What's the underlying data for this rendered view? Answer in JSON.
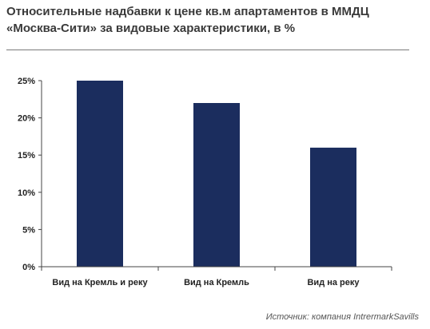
{
  "header": {
    "title_line1": "Относительные надбавки к цене кв.м апартаментов в ММДЦ",
    "title_line2": "«Москва-Сити» за видовые характеристики, в %"
  },
  "footer": {
    "source": "Источник: компания IntrermarkSavills"
  },
  "colors": {
    "bar": "#1b2d5e",
    "axis": "#444444",
    "text": "#222222"
  },
  "chart_data": {
    "type": "bar",
    "categories": [
      "Вид на Кремль и реку",
      "Вид на Кремль",
      "Вид на реку"
    ],
    "values": [
      25,
      22,
      16
    ],
    "ylim": [
      0,
      25
    ],
    "yticks": [
      0,
      5,
      10,
      15,
      20,
      25
    ],
    "ytick_labels": [
      "0%",
      "5%",
      "10%",
      "15%",
      "20%",
      "25%"
    ],
    "grid": false,
    "title": "",
    "xlabel": "",
    "ylabel": ""
  }
}
